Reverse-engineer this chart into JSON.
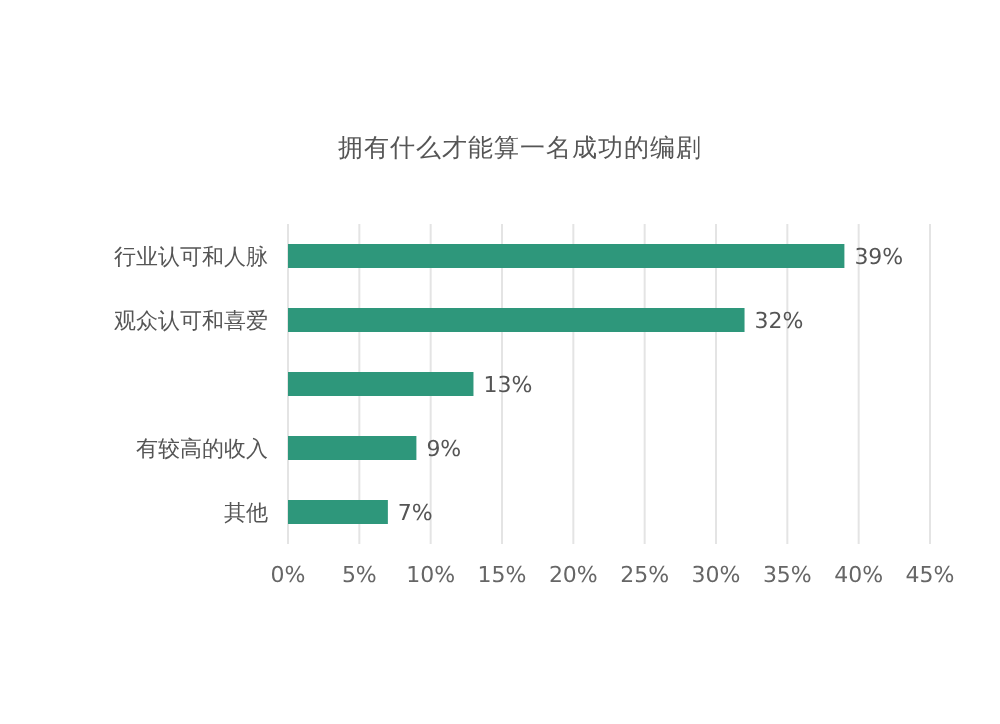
{
  "chart_data": {
    "type": "bar",
    "orientation": "horizontal",
    "title": "拥有什么才能算一名成功的编剧",
    "categories": [
      "行业认可和人脉",
      "观众认可和喜爱",
      null,
      "有较高的收入",
      "其他"
    ],
    "values": [
      39,
      32,
      13,
      9,
      7
    ],
    "color": "#2e977b",
    "value_labels": [
      "39%",
      "32%",
      "13%",
      "9%",
      "7%"
    ],
    "xlim": [
      0,
      45
    ],
    "xticks": [
      {
        "value": 0,
        "label": "0%"
      },
      {
        "value": 5,
        "label": "5%"
      },
      {
        "value": 10,
        "label": "10%"
      },
      {
        "value": 15,
        "label": "15%"
      },
      {
        "value": 20,
        "label": "20%"
      },
      {
        "value": 25,
        "label": "25%"
      },
      {
        "value": 30,
        "label": "30%"
      },
      {
        "value": 35,
        "label": "35%"
      },
      {
        "value": 40,
        "label": "40%"
      },
      {
        "value": 45,
        "label": "45%"
      }
    ],
    "grid": "x"
  }
}
